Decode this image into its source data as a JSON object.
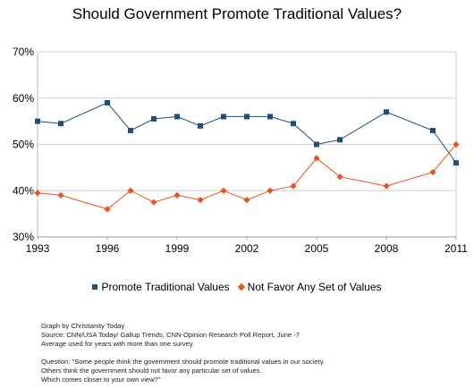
{
  "title": "Should Government Promote Traditional Values?",
  "chart_data": {
    "type": "line",
    "title": "Should Government Promote Traditional Values?",
    "xlabel": "",
    "ylabel": "",
    "xlim": [
      1993,
      2011
    ],
    "ylim": [
      30,
      70
    ],
    "x_ticks": [
      1993,
      1996,
      1999,
      2002,
      2005,
      2008,
      2011
    ],
    "y_ticks": [
      30,
      40,
      50,
      60,
      70
    ],
    "y_tick_labels": [
      "30%",
      "40%",
      "50%",
      "60%",
      "70%"
    ],
    "grid": "horizontal",
    "legend_position": "bottom",
    "series": [
      {
        "name": "Promote Traditional Values",
        "color": "#1f4e79",
        "marker": "square",
        "x": [
          1993,
          1994,
          1996,
          1997,
          1998,
          1999,
          2000,
          2001,
          2002,
          2003,
          2004,
          2005,
          2006,
          2008,
          2010,
          2011
        ],
        "values": [
          55,
          54.5,
          59,
          53,
          55.5,
          56,
          54,
          56,
          56,
          56,
          54.5,
          50,
          51,
          57,
          53,
          46
        ]
      },
      {
        "name": "Not Favor Any Set of Values",
        "color": "#e8531f",
        "marker": "diamond",
        "x": [
          1993,
          1994,
          1996,
          1997,
          1998,
          1999,
          2000,
          2001,
          2002,
          2003,
          2004,
          2005,
          2006,
          2008,
          2010,
          2011
        ],
        "values": [
          39.5,
          39,
          36,
          40,
          37.5,
          39,
          38,
          40,
          38,
          40,
          41,
          47,
          43,
          41,
          44,
          50
        ]
      }
    ]
  },
  "notes": {
    "line1": "Graph by Christianity Today",
    "line2": "Source: CNN/USA Today/ Gallup Trends, CNN-Opinion Research Poll Report, June -7",
    "line3": "Average used for years with more than one survey.",
    "line4": "Question: \"Some people think the government should promote traditional values in our society.",
    "line5": "Others think the government should not favor any particular set of values.",
    "line6": "Which comes closer to your own view?\""
  }
}
